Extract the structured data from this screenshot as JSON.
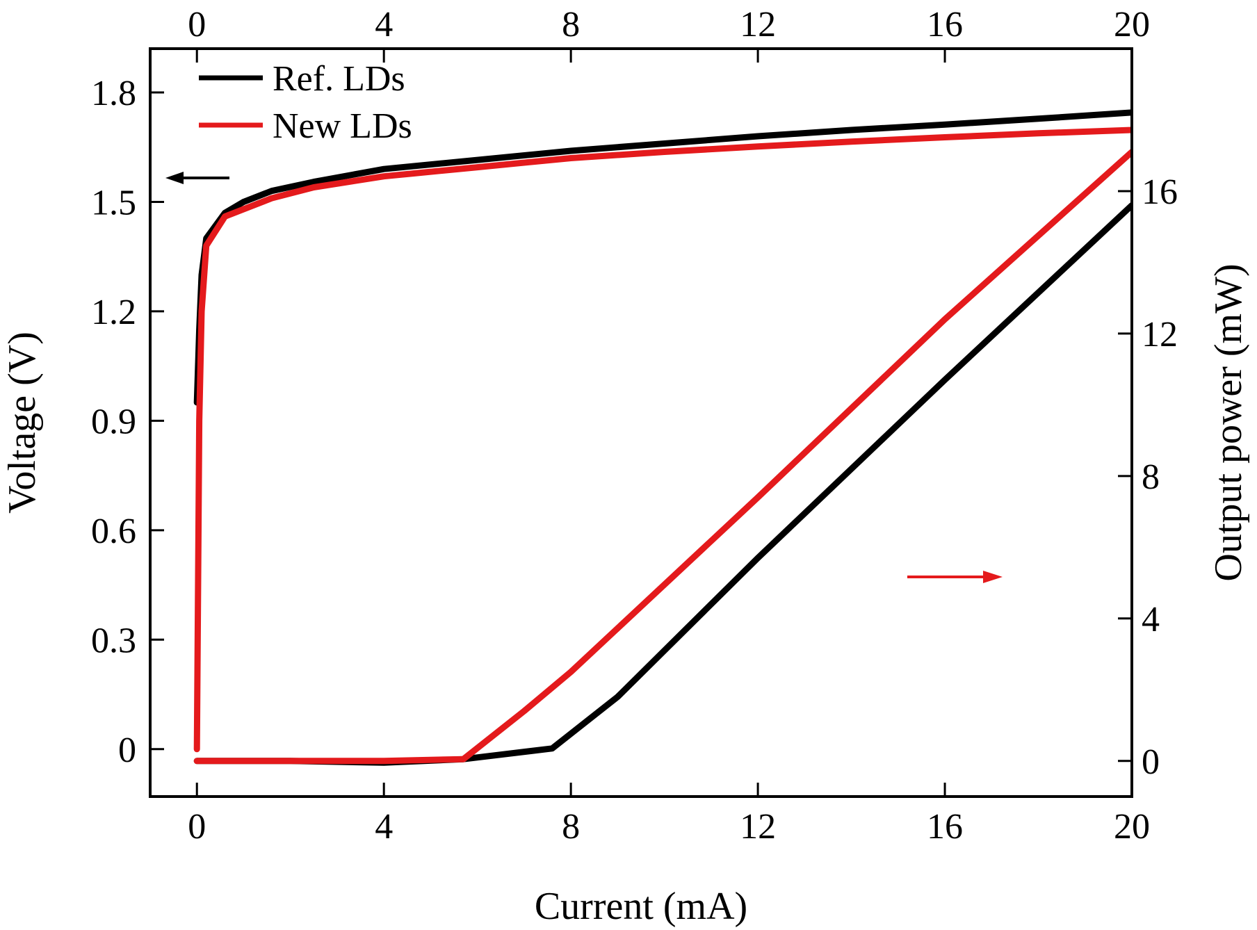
{
  "chart_data": {
    "type": "line",
    "xlabel": "Current (mA)",
    "ylabel_left": "Voltage (V)",
    "ylabel_right": "Output power (mW)",
    "xlim": [
      -1,
      20
    ],
    "ylim_left": [
      -0.13,
      1.92
    ],
    "ylim_right": [
      -1,
      20
    ],
    "x_ticks": [
      0,
      4,
      8,
      12,
      16,
      20
    ],
    "x_tick_labels": [
      "0",
      "4",
      "8",
      "12",
      "16",
      "20"
    ],
    "top_x_ticks": [
      0,
      4,
      8,
      12,
      16,
      20
    ],
    "top_x_tick_labels": [
      "0",
      "4",
      "8",
      "12",
      "16",
      "20"
    ],
    "y_left_ticks": [
      0,
      0.3,
      0.6,
      0.9,
      1.2,
      1.5,
      1.8
    ],
    "y_left_tick_labels": [
      "0",
      "0.3",
      "0.6",
      "0.9",
      "1.2",
      "1.5",
      "1.8"
    ],
    "y_right_ticks": [
      0,
      4,
      8,
      12,
      16
    ],
    "y_right_tick_labels": [
      "0",
      "4",
      "8",
      "12",
      "16"
    ],
    "grid": false,
    "legend": {
      "position": "top-left"
    },
    "series": [
      {
        "name": "Ref. LDs",
        "color": "#000000",
        "axis": "left",
        "x": [
          0,
          0.05,
          0.1,
          0.2,
          0.6,
          1.0,
          1.6,
          2.5,
          4,
          6,
          8,
          10,
          12,
          14,
          16,
          18,
          20
        ],
        "y": [
          0.95,
          1.15,
          1.3,
          1.4,
          1.47,
          1.5,
          1.53,
          1.555,
          1.59,
          1.615,
          1.64,
          1.66,
          1.68,
          1.697,
          1.712,
          1.728,
          1.745
        ]
      },
      {
        "name": "New LDs",
        "color": "#e41a1c",
        "axis": "left",
        "x": [
          0,
          0.05,
          0.1,
          0.2,
          0.6,
          1.0,
          1.6,
          2.5,
          4,
          6,
          8,
          10,
          12,
          14,
          16,
          18,
          20
        ],
        "y": [
          0.0,
          0.9,
          1.2,
          1.38,
          1.46,
          1.48,
          1.51,
          1.54,
          1.57,
          1.595,
          1.62,
          1.637,
          1.652,
          1.665,
          1.677,
          1.688,
          1.697
        ]
      },
      {
        "legend": false,
        "color": "#000000",
        "axis": "right",
        "x": [
          0,
          2,
          4,
          5.7,
          7.6,
          9,
          12,
          16,
          20
        ],
        "y": [
          0,
          0,
          -0.05,
          0.05,
          0.35,
          1.8,
          5.7,
          10.7,
          15.6
        ]
      },
      {
        "legend": false,
        "color": "#e41a1c",
        "axis": "right",
        "x": [
          0,
          2,
          4,
          5.7,
          7,
          8,
          12,
          16,
          20
        ],
        "y": [
          0,
          0,
          0,
          0.05,
          1.4,
          2.5,
          7.4,
          12.4,
          17.1
        ]
      }
    ],
    "annotations": [
      {
        "type": "arrow",
        "direction": "left",
        "color": "#000000",
        "points_to_axis": "left"
      },
      {
        "type": "arrow",
        "direction": "right",
        "color": "#e41a1c",
        "points_to_axis": "right"
      }
    ]
  }
}
